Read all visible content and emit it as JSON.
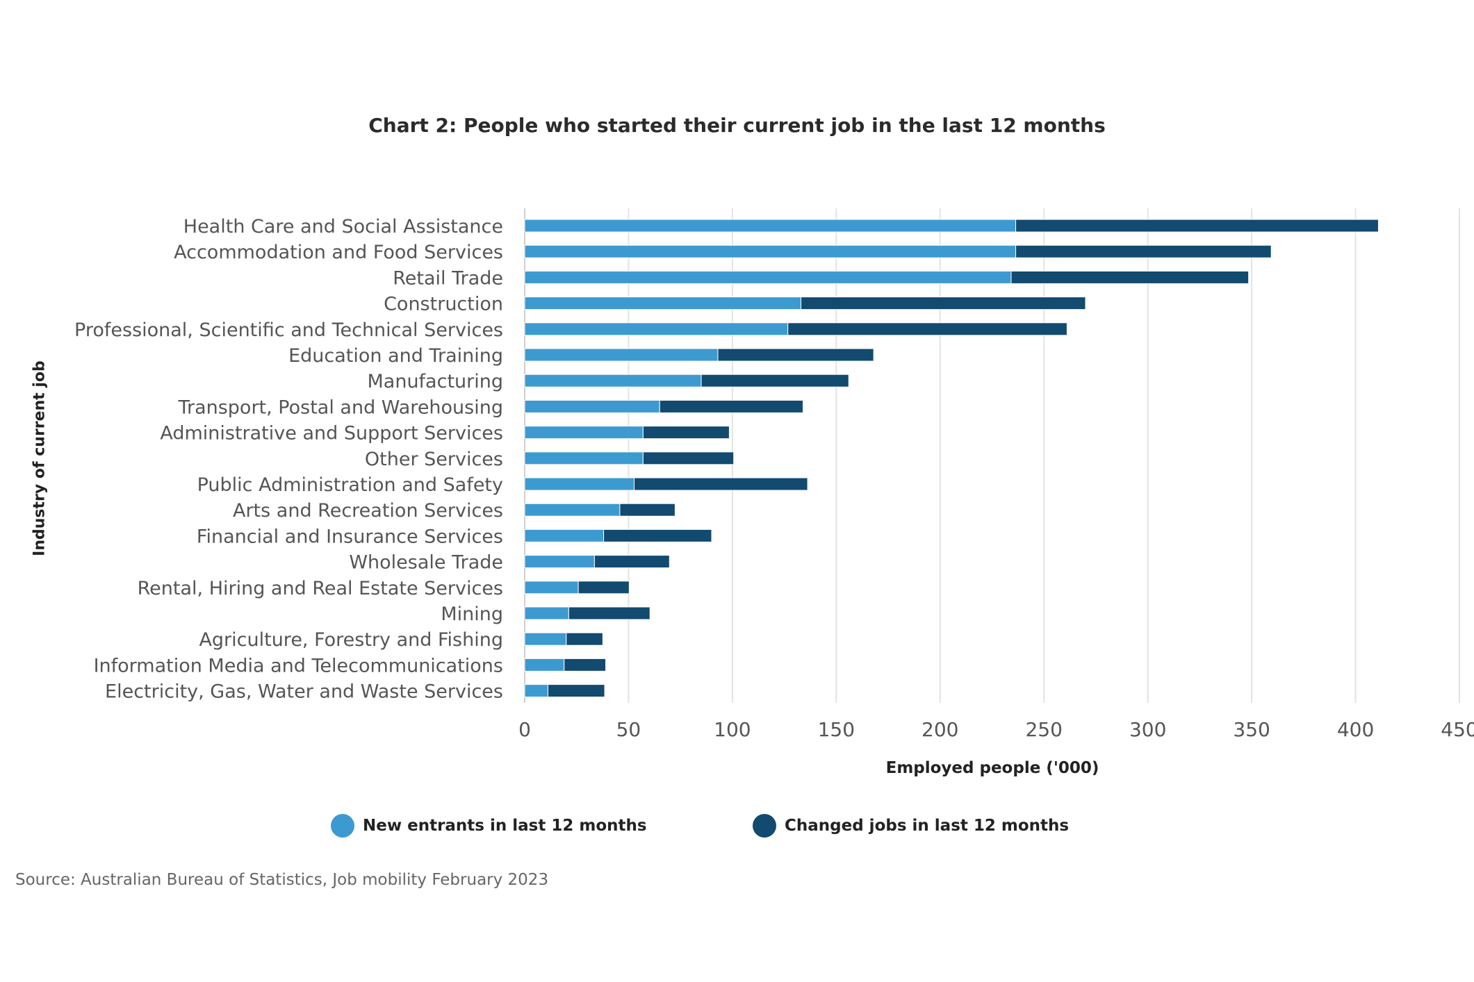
{
  "chart_data": {
    "type": "bar",
    "orientation": "horizontal",
    "stacked": true,
    "title": "Chart 2: People who started their current job in the last 12 months",
    "xlabel": "Employed people ('000)",
    "ylabel": "Industry of current job",
    "xlim": [
      0,
      450
    ],
    "xticks": [
      0,
      50,
      100,
      150,
      200,
      250,
      300,
      350,
      400,
      450
    ],
    "grid": "vertical",
    "legend": "bottom",
    "categories": [
      "Health Care and Social Assistance",
      "Accommodation and Food Services",
      "Retail Trade",
      "Construction",
      "Professional, Scientific and Technical Services",
      "Education and Training",
      "Manufacturing",
      "Transport, Postal and Warehousing",
      "Administrative and Support Services",
      "Other Services",
      "Public Administration and Safety",
      "Arts and Recreation Services",
      "Financial and Insurance Services",
      "Wholesale Trade",
      "Rental, Hiring and Real Estate Services",
      "Mining",
      "Agriculture, Forestry and Fishing",
      "Information Media and Telecommunications",
      "Electricity, Gas, Water and Waste Services"
    ],
    "series": [
      {
        "name": "New entrants in last 12 months",
        "color": "#3d9ad1",
        "values": [
          236.4,
          236.4,
          234.2,
          133.0,
          126.7,
          93.0,
          85.0,
          65.0,
          57.0,
          57.0,
          52.7,
          45.8,
          38.0,
          33.6,
          25.8,
          21.2,
          20.0,
          19.0,
          11.2
        ]
      },
      {
        "name": "Changed jobs in last 12 months",
        "color": "#124a70",
        "values": [
          174.6,
          123.0,
          114.3,
          137.0,
          134.4,
          75.0,
          71.0,
          69.0,
          41.5,
          43.6,
          83.5,
          26.6,
          52.0,
          36.1,
          24.5,
          39.1,
          17.6,
          20.0,
          27.3
        ]
      }
    ]
  },
  "source": "Source: Australian Bureau of Statistics, Job mobility February 2023"
}
